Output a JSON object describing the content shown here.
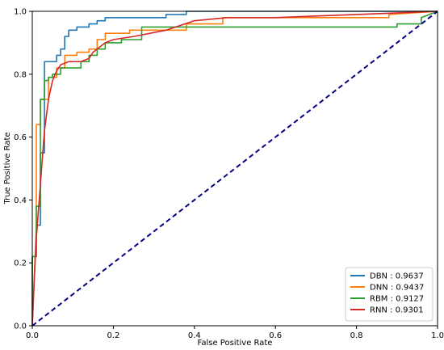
{
  "chart_data": {
    "type": "line",
    "title": "",
    "xlabel": "False Positive Rate",
    "ylabel": "True Positive Rate",
    "xlim": [
      0.0,
      1.0
    ],
    "ylim": [
      0.0,
      1.0
    ],
    "xticks": [
      "0.0",
      "0.2",
      "0.4",
      "0.6",
      "0.8",
      "1.0"
    ],
    "yticks": [
      "0.0",
      "0.2",
      "0.4",
      "0.6",
      "0.8",
      "1.0"
    ],
    "grid": false,
    "legend_position": "lower-right",
    "series": [
      {
        "name": "DBN",
        "label": "DBN  : 0.9637",
        "color": "#1f77b4",
        "x": [
          0.0,
          0.0,
          0.01,
          0.01,
          0.02,
          0.02,
          0.03,
          0.03,
          0.04,
          0.04,
          0.06,
          0.06,
          0.07,
          0.07,
          0.08,
          0.08,
          0.09,
          0.09,
          0.11,
          0.11,
          0.14,
          0.14,
          0.16,
          0.16,
          0.18,
          0.18,
          0.2,
          0.2,
          0.23,
          0.23,
          0.33,
          0.33,
          0.38,
          0.38,
          0.82,
          1.0
        ],
        "y": [
          0.0,
          0.22,
          0.22,
          0.32,
          0.32,
          0.55,
          0.55,
          0.84,
          0.84,
          0.84,
          0.84,
          0.86,
          0.86,
          0.88,
          0.88,
          0.92,
          0.92,
          0.94,
          0.94,
          0.95,
          0.95,
          0.96,
          0.96,
          0.97,
          0.97,
          0.98,
          0.98,
          0.98,
          0.98,
          0.98,
          0.98,
          0.99,
          0.99,
          1.0,
          1.0,
          1.0
        ]
      },
      {
        "name": "DNN",
        "label": "DNN  : 0.9437",
        "color": "#ff7f0e",
        "x": [
          0.0,
          0.01,
          0.01,
          0.02,
          0.02,
          0.03,
          0.03,
          0.04,
          0.04,
          0.06,
          0.06,
          0.08,
          0.08,
          0.11,
          0.11,
          0.14,
          0.14,
          0.16,
          0.16,
          0.18,
          0.18,
          0.24,
          0.24,
          0.27,
          0.27,
          0.38,
          0.38,
          0.47,
          0.47,
          0.88,
          0.88,
          1.0
        ],
        "y": [
          0.0,
          0.32,
          0.64,
          0.64,
          0.72,
          0.72,
          0.72,
          0.72,
          0.79,
          0.79,
          0.82,
          0.82,
          0.86,
          0.86,
          0.87,
          0.87,
          0.88,
          0.88,
          0.91,
          0.91,
          0.93,
          0.93,
          0.94,
          0.94,
          0.94,
          0.94,
          0.96,
          0.96,
          0.98,
          0.98,
          0.99,
          1.0
        ]
      },
      {
        "name": "RBM",
        "label": "RBM  : 0.9127",
        "color": "#2ca02c",
        "x": [
          0.0,
          0.0,
          0.01,
          0.01,
          0.02,
          0.02,
          0.03,
          0.03,
          0.04,
          0.04,
          0.05,
          0.05,
          0.07,
          0.07,
          0.09,
          0.09,
          0.12,
          0.12,
          0.14,
          0.14,
          0.16,
          0.16,
          0.18,
          0.18,
          0.22,
          0.22,
          0.27,
          0.27,
          0.9,
          0.9,
          0.96,
          0.96,
          0.98,
          1.0
        ],
        "y": [
          0.0,
          0.22,
          0.22,
          0.38,
          0.38,
          0.72,
          0.72,
          0.78,
          0.78,
          0.79,
          0.79,
          0.8,
          0.8,
          0.82,
          0.82,
          0.82,
          0.82,
          0.84,
          0.84,
          0.86,
          0.86,
          0.88,
          0.88,
          0.9,
          0.9,
          0.91,
          0.91,
          0.95,
          0.95,
          0.96,
          0.96,
          0.98,
          0.99,
          1.0
        ]
      },
      {
        "name": "RNN",
        "label": "RNN  : 0.9301",
        "color": "#d62728",
        "x": [
          0.0,
          0.005,
          0.01,
          0.02,
          0.03,
          0.04,
          0.05,
          0.06,
          0.07,
          0.09,
          0.12,
          0.14,
          0.15,
          0.16,
          0.18,
          0.2,
          0.25,
          0.33,
          0.4,
          0.48,
          0.6,
          0.8,
          1.0
        ],
        "y": [
          0.0,
          0.15,
          0.28,
          0.45,
          0.62,
          0.72,
          0.78,
          0.81,
          0.83,
          0.84,
          0.84,
          0.85,
          0.87,
          0.88,
          0.9,
          0.91,
          0.92,
          0.94,
          0.97,
          0.98,
          0.98,
          0.99,
          1.0
        ]
      },
      {
        "name": "",
        "label": "",
        "color": "#000080",
        "dashed": true,
        "x": [
          0.0,
          1.0
        ],
        "y": [
          0.0,
          1.0
        ]
      }
    ]
  }
}
